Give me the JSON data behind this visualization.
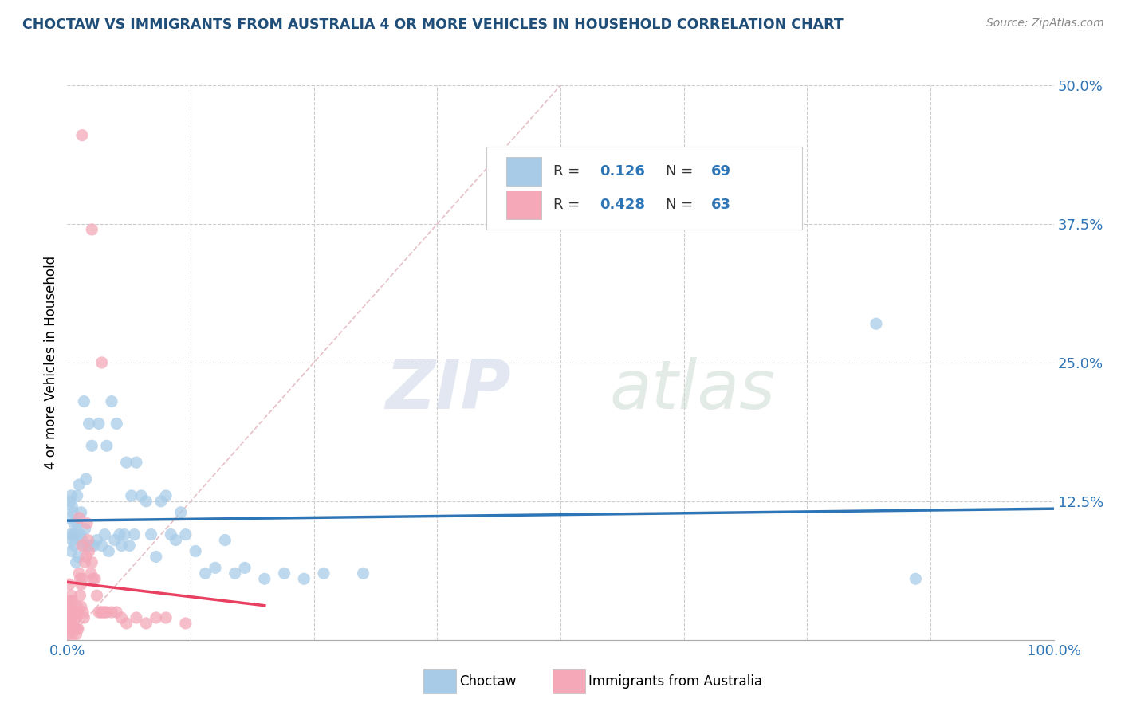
{
  "title": "CHOCTAW VS IMMIGRANTS FROM AUSTRALIA 4 OR MORE VEHICLES IN HOUSEHOLD CORRELATION CHART",
  "source": "Source: ZipAtlas.com",
  "ylabel": "4 or more Vehicles in Household",
  "xlim": [
    0.0,
    1.0
  ],
  "ylim": [
    0.0,
    0.5
  ],
  "xticks": [
    0.0,
    0.125,
    0.25,
    0.375,
    0.5,
    0.625,
    0.75,
    0.875,
    1.0
  ],
  "xticklabels": [
    "0.0%",
    "",
    "",
    "",
    "",
    "",
    "",
    "",
    "100.0%"
  ],
  "yticks": [
    0.0,
    0.125,
    0.25,
    0.375,
    0.5
  ],
  "yticklabels": [
    "",
    "12.5%",
    "25.0%",
    "37.5%",
    "50.0%"
  ],
  "legend1_label": "Choctaw",
  "legend2_label": "Immigrants from Australia",
  "R1": 0.126,
  "N1": 69,
  "R2": 0.428,
  "N2": 63,
  "color_blue": "#A8CCE8",
  "color_pink": "#F4A8B8",
  "color_blue_line": "#2E75B6",
  "color_pink_line": "#E84060",
  "color_diag": "#C8C8C8",
  "background_color": "#FFFFFF",
  "watermark_zip": "ZIP",
  "watermark_atlas": "atlas",
  "blue_scatter_x": [
    0.002,
    0.003,
    0.003,
    0.004,
    0.004,
    0.005,
    0.005,
    0.006,
    0.006,
    0.007,
    0.007,
    0.008,
    0.009,
    0.01,
    0.01,
    0.011,
    0.012,
    0.013,
    0.014,
    0.015,
    0.016,
    0.017,
    0.018,
    0.019,
    0.02,
    0.022,
    0.024,
    0.025,
    0.027,
    0.03,
    0.032,
    0.035,
    0.038,
    0.04,
    0.042,
    0.045,
    0.048,
    0.05,
    0.053,
    0.055,
    0.058,
    0.06,
    0.063,
    0.065,
    0.068,
    0.07,
    0.075,
    0.08,
    0.085,
    0.09,
    0.095,
    0.1,
    0.105,
    0.11,
    0.115,
    0.12,
    0.13,
    0.14,
    0.15,
    0.16,
    0.17,
    0.18,
    0.2,
    0.22,
    0.24,
    0.26,
    0.3,
    0.82,
    0.86
  ],
  "blue_scatter_y": [
    0.11,
    0.095,
    0.125,
    0.08,
    0.13,
    0.09,
    0.12,
    0.095,
    0.115,
    0.085,
    0.105,
    0.095,
    0.07,
    0.13,
    0.105,
    0.075,
    0.14,
    0.095,
    0.115,
    0.09,
    0.085,
    0.215,
    0.1,
    0.145,
    0.085,
    0.195,
    0.085,
    0.175,
    0.085,
    0.09,
    0.195,
    0.085,
    0.095,
    0.175,
    0.08,
    0.215,
    0.09,
    0.195,
    0.095,
    0.085,
    0.095,
    0.16,
    0.085,
    0.13,
    0.095,
    0.16,
    0.13,
    0.125,
    0.095,
    0.075,
    0.125,
    0.13,
    0.095,
    0.09,
    0.115,
    0.095,
    0.08,
    0.06,
    0.065,
    0.09,
    0.06,
    0.065,
    0.055,
    0.06,
    0.055,
    0.06,
    0.06,
    0.285,
    0.055
  ],
  "pink_scatter_x": [
    0.001,
    0.001,
    0.002,
    0.002,
    0.002,
    0.003,
    0.003,
    0.003,
    0.004,
    0.004,
    0.004,
    0.005,
    0.005,
    0.005,
    0.006,
    0.006,
    0.007,
    0.007,
    0.008,
    0.008,
    0.009,
    0.009,
    0.01,
    0.01,
    0.011,
    0.011,
    0.012,
    0.012,
    0.013,
    0.013,
    0.014,
    0.014,
    0.015,
    0.015,
    0.016,
    0.017,
    0.018,
    0.019,
    0.02,
    0.021,
    0.022,
    0.024,
    0.025,
    0.026,
    0.028,
    0.03,
    0.032,
    0.034,
    0.036,
    0.038,
    0.04,
    0.045,
    0.05,
    0.055,
    0.06,
    0.07,
    0.08,
    0.09,
    0.1,
    0.12,
    0.015,
    0.025,
    0.035
  ],
  "pink_scatter_y": [
    0.005,
    0.02,
    0.01,
    0.03,
    0.05,
    0.015,
    0.025,
    0.035,
    0.01,
    0.025,
    0.04,
    0.005,
    0.02,
    0.035,
    0.01,
    0.025,
    0.01,
    0.025,
    0.01,
    0.02,
    0.005,
    0.02,
    0.01,
    0.03,
    0.01,
    0.025,
    0.06,
    0.11,
    0.04,
    0.055,
    0.03,
    0.05,
    0.055,
    0.085,
    0.025,
    0.02,
    0.07,
    0.075,
    0.105,
    0.09,
    0.08,
    0.06,
    0.07,
    0.055,
    0.055,
    0.04,
    0.025,
    0.025,
    0.025,
    0.025,
    0.025,
    0.025,
    0.025,
    0.02,
    0.015,
    0.02,
    0.015,
    0.02,
    0.02,
    0.015,
    0.455,
    0.37,
    0.25
  ]
}
